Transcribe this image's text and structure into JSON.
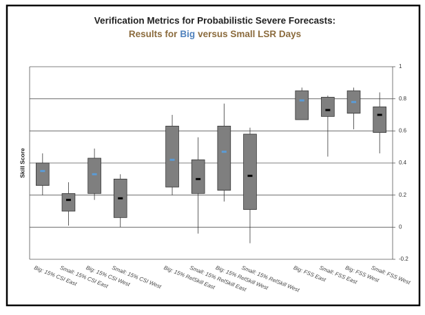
{
  "chart_data": {
    "type": "box",
    "title": "Verification Metrics for Probabilistic Severe Forecasts:",
    "subtitle_parts": [
      "Results for",
      "Big",
      "versus Small LSR Days"
    ],
    "subtitle_colors": [
      "#8b6b3d",
      "#4f81bd",
      "#8b6b3d"
    ],
    "y_label": "Skill Score",
    "categories": [
      "Big: 15% CSI East",
      "Small: 15% CSI East",
      "Big: 15% CSI West",
      "Small: 15% CSI West",
      null,
      "Big: 15% RelSkill East",
      "Small: 15% RelSkill East",
      "Big: 15% RelSkill West",
      "Small: 15% RelSkill West",
      null,
      "Big: FSS East",
      "Small: FSS East",
      "Big: FSS West",
      "Small: FSS West"
    ],
    "min": [
      0.2,
      0.01,
      0.17,
      0.0,
      null,
      0.2,
      -0.04,
      0.16,
      -0.1,
      null,
      0.67,
      0.44,
      0.61,
      0.46
    ],
    "q1": [
      0.26,
      0.1,
      0.21,
      0.06,
      null,
      0.25,
      0.21,
      0.23,
      0.11,
      null,
      0.67,
      0.69,
      0.71,
      0.59
    ],
    "center": [
      0.35,
      0.17,
      0.33,
      0.18,
      null,
      0.42,
      0.3,
      0.47,
      0.32,
      null,
      0.79,
      0.73,
      0.78,
      0.7
    ],
    "q3": [
      0.4,
      0.21,
      0.43,
      0.3,
      null,
      0.63,
      0.42,
      0.63,
      0.58,
      null,
      0.85,
      0.81,
      0.85,
      0.75
    ],
    "max": [
      0.46,
      0.28,
      0.49,
      0.33,
      null,
      0.7,
      0.56,
      0.77,
      0.62,
      null,
      0.87,
      0.82,
      0.87,
      0.84
    ],
    "marker_colors": [
      "#5b9bd5",
      "#000000",
      "#5b9bd5",
      "#000000",
      null,
      "#5b9bd5",
      "#000000",
      "#5b9bd5",
      "#000000",
      null,
      "#5b9bd5",
      "#000000",
      "#5b9bd5",
      "#000000"
    ],
    "box_color": "#7f7f7f",
    "ylim": [
      -0.2,
      1
    ],
    "yticks": [
      -0.2,
      0,
      0.2,
      0.4,
      0.6,
      0.8,
      1
    ],
    "y_axis_side": "right",
    "grid": true
  }
}
